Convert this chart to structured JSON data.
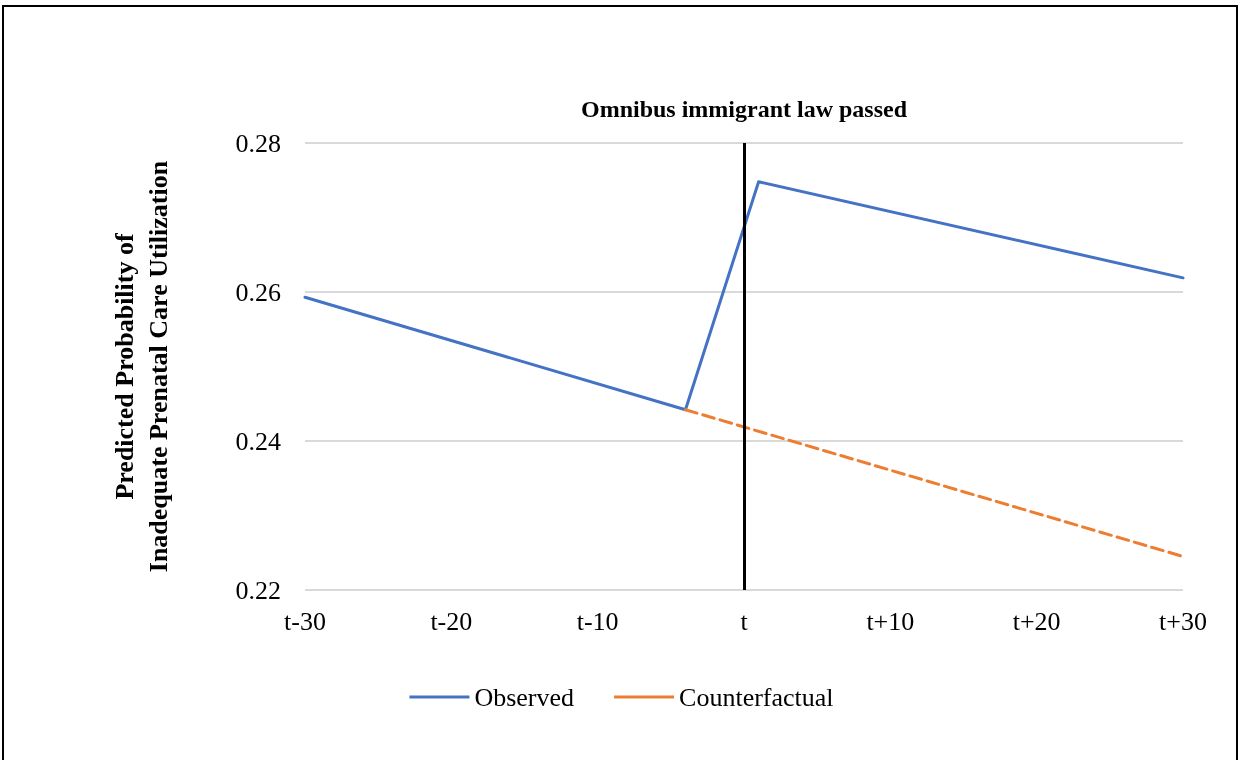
{
  "chart_data": {
    "type": "line",
    "ylabel": "Predicted Probability of\nInadequate Prenatal Care Utilization",
    "categories": [
      "t-30",
      null,
      null,
      null,
      null,
      null,
      null,
      null,
      null,
      null,
      "t-20",
      null,
      null,
      null,
      null,
      null,
      null,
      null,
      null,
      null,
      "t-10",
      null,
      null,
      null,
      null,
      null,
      null,
      null,
      null,
      null,
      "t",
      null,
      null,
      null,
      null,
      null,
      null,
      null,
      null,
      null,
      "t+10",
      null,
      null,
      null,
      null,
      null,
      null,
      null,
      null,
      null,
      "t+20",
      null,
      null,
      null,
      null,
      null,
      null,
      null,
      null,
      null,
      "t+30"
    ],
    "ylim": [
      0.22,
      0.28
    ],
    "yticks": [
      0.22,
      0.24,
      0.26,
      0.28
    ],
    "series": [
      {
        "name": "Observed",
        "color": "#4472c4",
        "line_style": "solid",
        "values": [
          0.2593,
          null,
          null,
          null,
          null,
          null,
          null,
          null,
          null,
          null,
          null,
          null,
          null,
          null,
          null,
          null,
          null,
          null,
          null,
          null,
          null,
          null,
          null,
          null,
          null,
          null,
          0.2442,
          null,
          null,
          null,
          null,
          0.2748,
          null,
          null,
          null,
          null,
          null,
          null,
          null,
          null,
          null,
          null,
          null,
          null,
          null,
          null,
          null,
          null,
          null,
          null,
          null,
          null,
          null,
          null,
          null,
          null,
          null,
          null,
          null,
          null,
          0.2619
        ]
      },
      {
        "name": "Counterfactual",
        "color": "#ed7d31",
        "line_style": "dashed",
        "values": [
          null,
          null,
          null,
          null,
          null,
          null,
          null,
          null,
          null,
          null,
          null,
          null,
          null,
          null,
          null,
          null,
          null,
          null,
          null,
          null,
          null,
          null,
          null,
          null,
          null,
          null,
          0.2442,
          null,
          null,
          null,
          null,
          null,
          null,
          null,
          null,
          null,
          null,
          null,
          null,
          null,
          null,
          null,
          null,
          null,
          null,
          null,
          null,
          null,
          null,
          null,
          null,
          null,
          null,
          null,
          null,
          null,
          null,
          null,
          null,
          null,
          0.2245
        ]
      }
    ],
    "ref_lines": [
      {
        "axis": "x",
        "value": "t",
        "label": "Omnibus immigrant law passed",
        "color": "#000000",
        "line_style": "solid"
      }
    ],
    "grid": "y",
    "legend": "bottom",
    "marker": "none"
  }
}
